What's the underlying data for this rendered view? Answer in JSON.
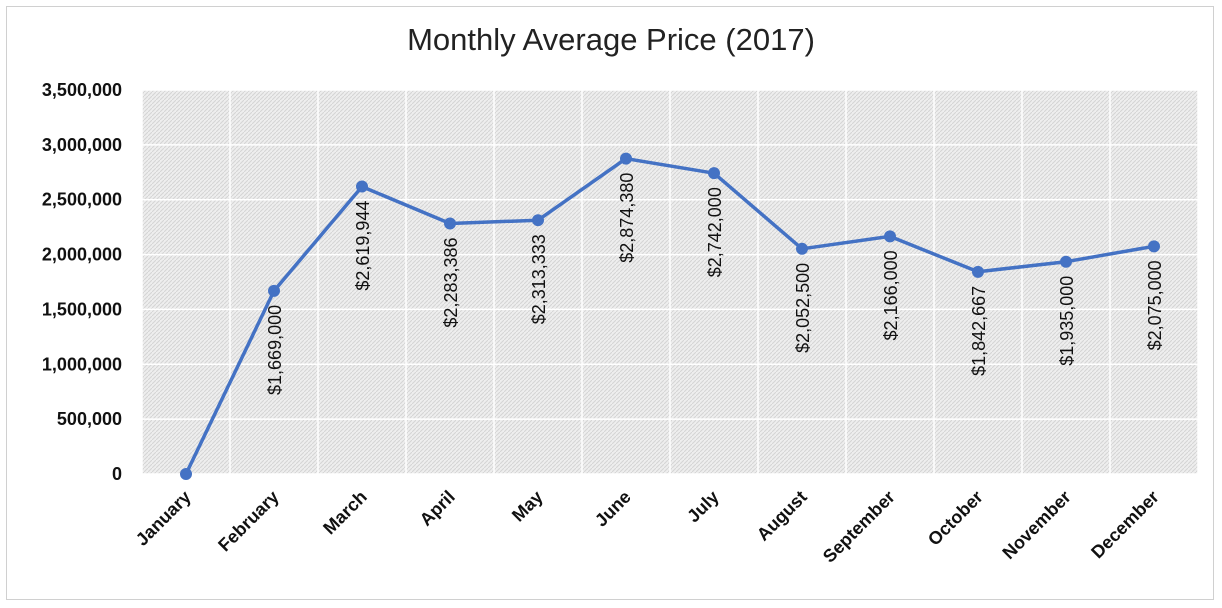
{
  "chart_data": {
    "type": "line",
    "title": "Monthly Average Price (2017)",
    "xlabel": "",
    "ylabel": "",
    "categories": [
      "January",
      "February",
      "March",
      "April",
      "May",
      "June",
      "July",
      "August",
      "September",
      "October",
      "November",
      "December"
    ],
    "series": [
      {
        "values": [
          0,
          1669000,
          2619944,
          2283386,
          2313333,
          2874380,
          2742000,
          2052500,
          2166000,
          1842667,
          1935000,
          2075000
        ],
        "data_labels": [
          "",
          "$1,669,000",
          "$2,619,944",
          "$2,283,386",
          "$2,313,333",
          "$2,874,380",
          "$2,742,000",
          "$2,052,500",
          "$2,166,000",
          "$1,842,667",
          "$1,935,000",
          "$2,075,000"
        ],
        "color": "#4472c4"
      }
    ],
    "ylim": [
      0,
      3500000
    ],
    "y_ticks": [
      0,
      500000,
      1000000,
      1500000,
      2000000,
      2500000,
      3000000,
      3500000
    ],
    "y_tick_labels": [
      "0",
      "500,000",
      "1,000,000",
      "1,500,000",
      "2,000,000",
      "2,500,000",
      "3,000,000",
      "3,500,000"
    ],
    "grid": true,
    "legend": "none",
    "plot_background": "hatched-gray"
  }
}
